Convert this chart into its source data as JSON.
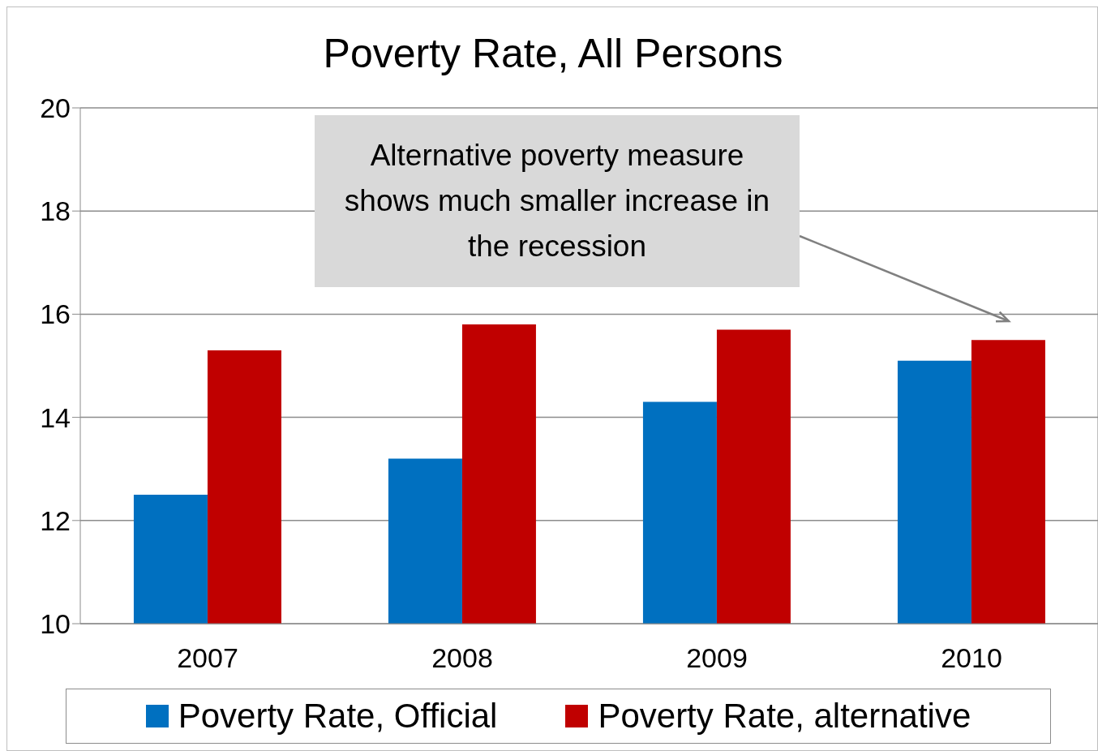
{
  "chart_data": {
    "type": "bar",
    "title": "Poverty Rate, All Persons",
    "categories": [
      "2007",
      "2008",
      "2009",
      "2010"
    ],
    "series": [
      {
        "name": "Poverty Rate, Official",
        "color": "#0070c0",
        "values": [
          12.5,
          13.2,
          14.3,
          15.1
        ]
      },
      {
        "name": "Poverty Rate, alternative",
        "color": "#c00000",
        "values": [
          15.3,
          15.8,
          15.7,
          15.5
        ]
      }
    ],
    "ylim": [
      10,
      20
    ],
    "yticks": [
      10,
      12,
      14,
      16,
      18,
      20
    ],
    "grid": "y",
    "legend": "bottom",
    "annotations": [
      "Alternative poverty measure shows much smaller increase in the recession"
    ]
  }
}
